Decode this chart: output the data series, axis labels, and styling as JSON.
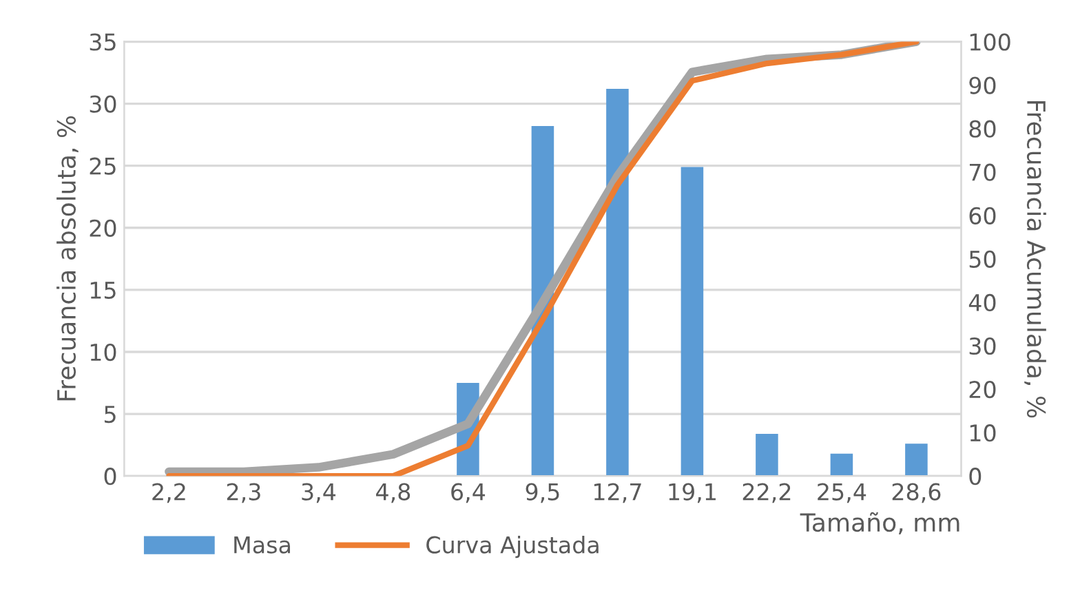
{
  "chart_data": {
    "type": "bar",
    "categories": [
      "2,2",
      "2,3",
      "3,4",
      "4,8",
      "6,4",
      "9,5",
      "12,7",
      "19,1",
      "22,2",
      "25,4",
      "28,6"
    ],
    "xlabel": "Tamaño, mm",
    "ylabel": "Frecuancia absoluta, %",
    "y2label": "Frecuancia Acumulada, %",
    "series": [
      {
        "name": "Masa",
        "color": "#5b9bd5",
        "values": [
          0,
          0,
          0,
          0,
          7.5,
          28.2,
          31.2,
          24.9,
          3.4,
          1.8,
          2.6
        ]
      },
      {
        "type": "line",
        "axis": "y2",
        "color": "#a5a5a5",
        "values": [
          1,
          1,
          2,
          5,
          12,
          40,
          69,
          93,
          96,
          97,
          100
        ]
      },
      {
        "name": "Curva Ajustada",
        "type": "line",
        "axis": "y2",
        "color": "#ed7d31",
        "values": [
          0,
          0,
          0,
          0,
          7,
          36,
          67,
          91,
          95,
          97,
          100
        ]
      }
    ],
    "ylim": [
      0,
      35
    ],
    "yticks": [
      0,
      5,
      10,
      15,
      20,
      25,
      30,
      35
    ],
    "y2lim": [
      0,
      100
    ],
    "y2ticks": [
      0,
      10,
      20,
      30,
      40,
      50,
      60,
      70,
      80,
      90,
      100
    ],
    "grid": "y",
    "legend": "bottom"
  }
}
